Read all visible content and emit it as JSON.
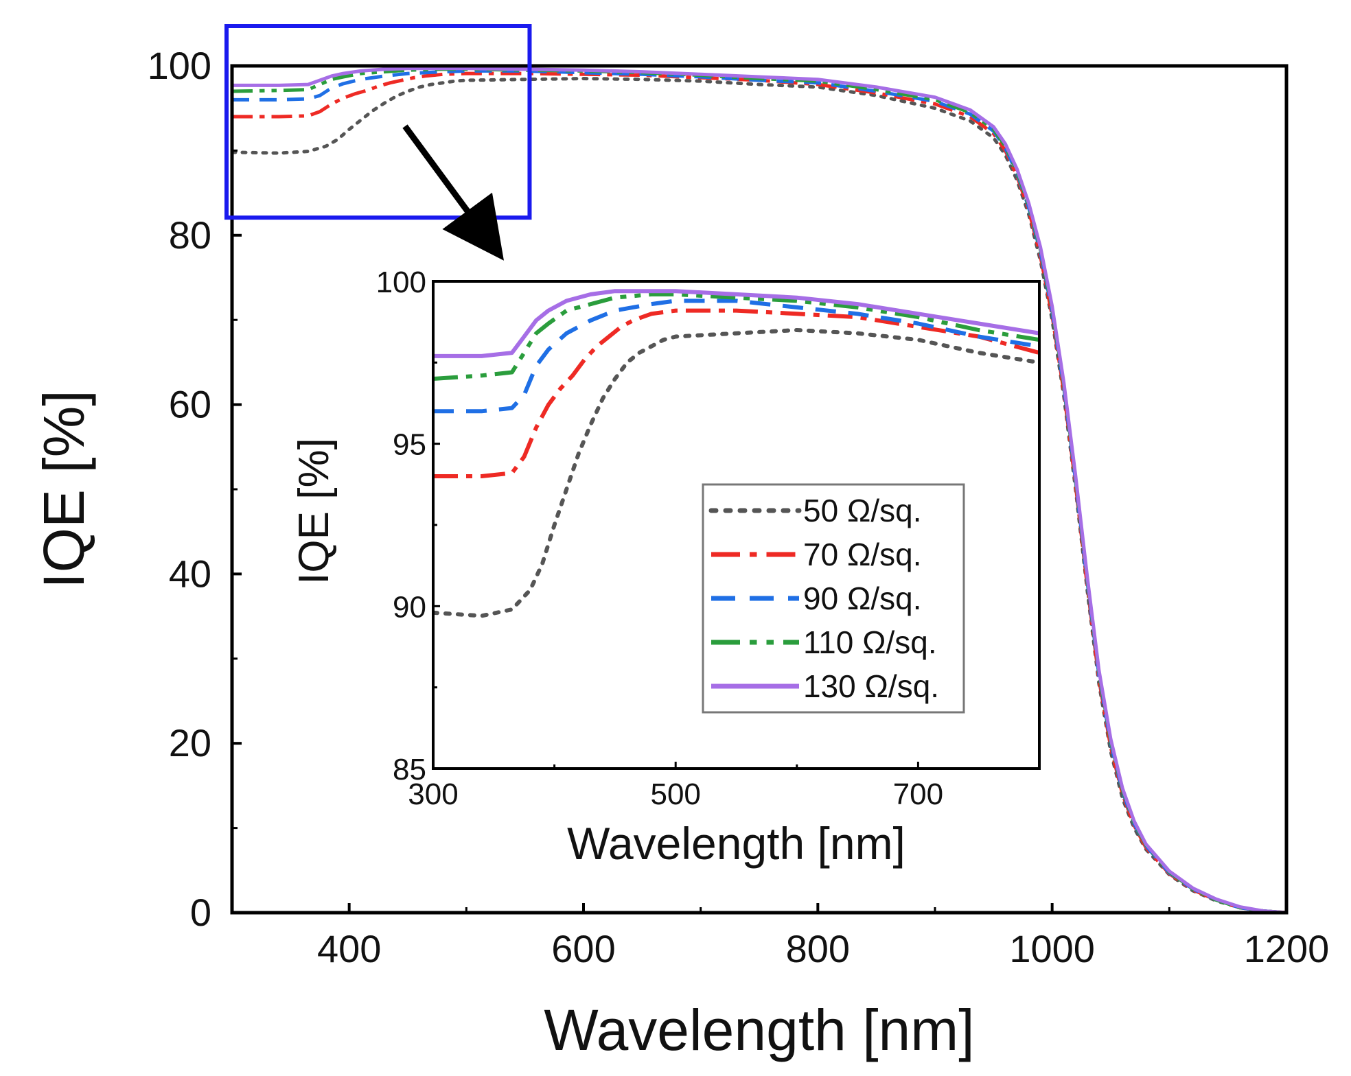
{
  "chart_data": [
    {
      "id": "main",
      "type": "line",
      "title": "",
      "xlabel": "Wavelength [nm]",
      "ylabel": "IQE [%]",
      "xlim": [
        300,
        1200
      ],
      "ylim": [
        0,
        100
      ],
      "xticks": [
        400,
        600,
        800,
        1000,
        1200
      ],
      "xtick_labels": [
        "400",
        "600",
        "800",
        "1000",
        "1200"
      ],
      "yticks": [
        0,
        20,
        40,
        60,
        80,
        100
      ],
      "ytick_labels": [
        "0",
        "20",
        "40",
        "60",
        "80",
        "100"
      ],
      "grid": false,
      "series": [
        {
          "name": "50 Ω/sq.",
          "color": "#555555",
          "style": "dot",
          "x": [
            300,
            340,
            365,
            380,
            390,
            400,
            410,
            420,
            430,
            440,
            450,
            460,
            470,
            480,
            490,
            500,
            550,
            600,
            650,
            700,
            750,
            800,
            850,
            900,
            930,
            950,
            960,
            970,
            980,
            990,
            1000,
            1010,
            1020,
            1030,
            1040,
            1050,
            1060,
            1070,
            1080,
            1100,
            1120,
            1140,
            1160,
            1180,
            1200
          ],
          "y": [
            89.8,
            89.7,
            89.9,
            90.5,
            91.3,
            92.5,
            93.6,
            94.7,
            95.6,
            96.4,
            97.0,
            97.5,
            97.8,
            98.0,
            98.2,
            98.3,
            98.4,
            98.5,
            98.4,
            98.2,
            97.8,
            97.5,
            96.5,
            95.0,
            93.5,
            91.5,
            89.5,
            86.5,
            82.5,
            77.0,
            70.0,
            61.0,
            50.0,
            38.0,
            27.0,
            19.0,
            13.5,
            10.0,
            7.5,
            4.5,
            2.6,
            1.4,
            0.6,
            0.2,
            0
          ]
        },
        {
          "name": "70 Ω/sq.",
          "color": "#ee2a24",
          "style": "dashdot",
          "x": [
            300,
            340,
            365,
            375,
            385,
            395,
            405,
            415,
            425,
            435,
            445,
            455,
            465,
            480,
            500,
            550,
            600,
            650,
            700,
            750,
            800,
            850,
            900,
            930,
            950,
            960,
            970,
            980,
            990,
            1000,
            1010,
            1020,
            1030,
            1040,
            1050,
            1060,
            1070,
            1080,
            1100,
            1120,
            1140,
            1160,
            1180,
            1200
          ],
          "y": [
            94.0,
            94.0,
            94.1,
            94.6,
            95.5,
            96.2,
            96.7,
            97.1,
            97.6,
            98.0,
            98.3,
            98.6,
            98.8,
            99.0,
            99.1,
            99.1,
            99.0,
            98.9,
            98.6,
            98.3,
            97.8,
            96.8,
            95.5,
            94.0,
            92.0,
            90.0,
            87.0,
            83.0,
            77.5,
            70.5,
            61.5,
            50.5,
            38.5,
            27.5,
            19.5,
            14.0,
            10.3,
            7.7,
            4.6,
            2.7,
            1.5,
            0.6,
            0.2,
            0
          ]
        },
        {
          "name": "90 Ω/sq.",
          "color": "#1f6fe5",
          "style": "dash",
          "x": [
            300,
            340,
            365,
            375,
            385,
            395,
            410,
            430,
            450,
            480,
            500,
            550,
            600,
            650,
            700,
            750,
            800,
            850,
            900,
            930,
            950,
            960,
            970,
            980,
            990,
            1000,
            1010,
            1020,
            1030,
            1040,
            1050,
            1060,
            1070,
            1080,
            1100,
            1120,
            1140,
            1160,
            1180,
            1200
          ],
          "y": [
            96.0,
            96.0,
            96.1,
            96.5,
            97.4,
            97.9,
            98.4,
            98.8,
            99.1,
            99.3,
            99.4,
            99.4,
            99.2,
            99.0,
            98.7,
            98.3,
            98.0,
            97.0,
            95.8,
            94.3,
            92.3,
            90.3,
            87.3,
            83.3,
            78.0,
            71.0,
            62.0,
            51.0,
            39.0,
            28.0,
            20.0,
            14.3,
            10.5,
            7.9,
            4.7,
            2.8,
            1.5,
            0.6,
            0.2,
            0
          ]
        },
        {
          "name": "110 Ω/sq.",
          "color": "#2a9d3c",
          "style": "dashdotdot",
          "x": [
            300,
            340,
            365,
            375,
            385,
            395,
            410,
            430,
            450,
            480,
            500,
            550,
            600,
            650,
            700,
            750,
            800,
            850,
            900,
            930,
            950,
            960,
            970,
            980,
            990,
            1000,
            1010,
            1020,
            1030,
            1040,
            1050,
            1060,
            1070,
            1080,
            1100,
            1120,
            1140,
            1160,
            1180,
            1200
          ],
          "y": [
            97.0,
            97.1,
            97.2,
            97.8,
            98.4,
            98.7,
            99.1,
            99.3,
            99.5,
            99.6,
            99.6,
            99.5,
            99.4,
            99.2,
            98.9,
            98.5,
            98.2,
            97.2,
            96.0,
            94.5,
            92.5,
            90.5,
            87.5,
            83.5,
            78.3,
            71.3,
            62.3,
            51.3,
            39.3,
            28.3,
            20.2,
            14.5,
            10.6,
            8.0,
            4.8,
            2.8,
            1.5,
            0.6,
            0.2,
            0
          ]
        },
        {
          "name": "130 Ω/sq.",
          "color": "#a66ee6",
          "style": "solid",
          "x": [
            300,
            340,
            365,
            375,
            385,
            395,
            410,
            430,
            450,
            480,
            500,
            550,
            600,
            650,
            700,
            750,
            800,
            850,
            900,
            930,
            950,
            960,
            970,
            980,
            990,
            1000,
            1010,
            1020,
            1030,
            1040,
            1050,
            1060,
            1070,
            1080,
            1100,
            1120,
            1140,
            1160,
            1180,
            1200
          ],
          "y": [
            97.7,
            97.7,
            97.8,
            98.3,
            98.8,
            99.1,
            99.4,
            99.6,
            99.7,
            99.7,
            99.7,
            99.6,
            99.5,
            99.3,
            99.0,
            98.7,
            98.4,
            97.5,
            96.3,
            94.8,
            92.8,
            90.8,
            87.8,
            83.8,
            78.6,
            71.6,
            62.6,
            51.6,
            39.6,
            28.6,
            20.5,
            14.7,
            10.8,
            8.1,
            4.9,
            2.9,
            1.6,
            0.7,
            0.2,
            0
          ]
        }
      ],
      "annotations": {
        "zoom_box": {
          "x": [
            300,
            520
          ],
          "y": [
            85,
            100
          ],
          "color": "#1a1aee"
        }
      }
    },
    {
      "id": "inset",
      "type": "line",
      "title": "",
      "xlabel": "Wavelength [nm]",
      "ylabel": "IQE [%]",
      "xlim": [
        300,
        800
      ],
      "ylim": [
        85,
        100
      ],
      "xticks": [
        300,
        500,
        700
      ],
      "xtick_labels": [
        "300",
        "500",
        "700"
      ],
      "yticks": [
        85,
        90,
        95,
        100
      ],
      "ytick_labels": [
        "85",
        "90",
        "95",
        "100"
      ],
      "grid": false,
      "legend_position": "lower-right",
      "legend": [
        "50 Ω/sq.",
        "70 Ω/sq.",
        "90 Ω/sq.",
        "110 Ω/sq.",
        "130 Ω/sq."
      ]
    }
  ]
}
